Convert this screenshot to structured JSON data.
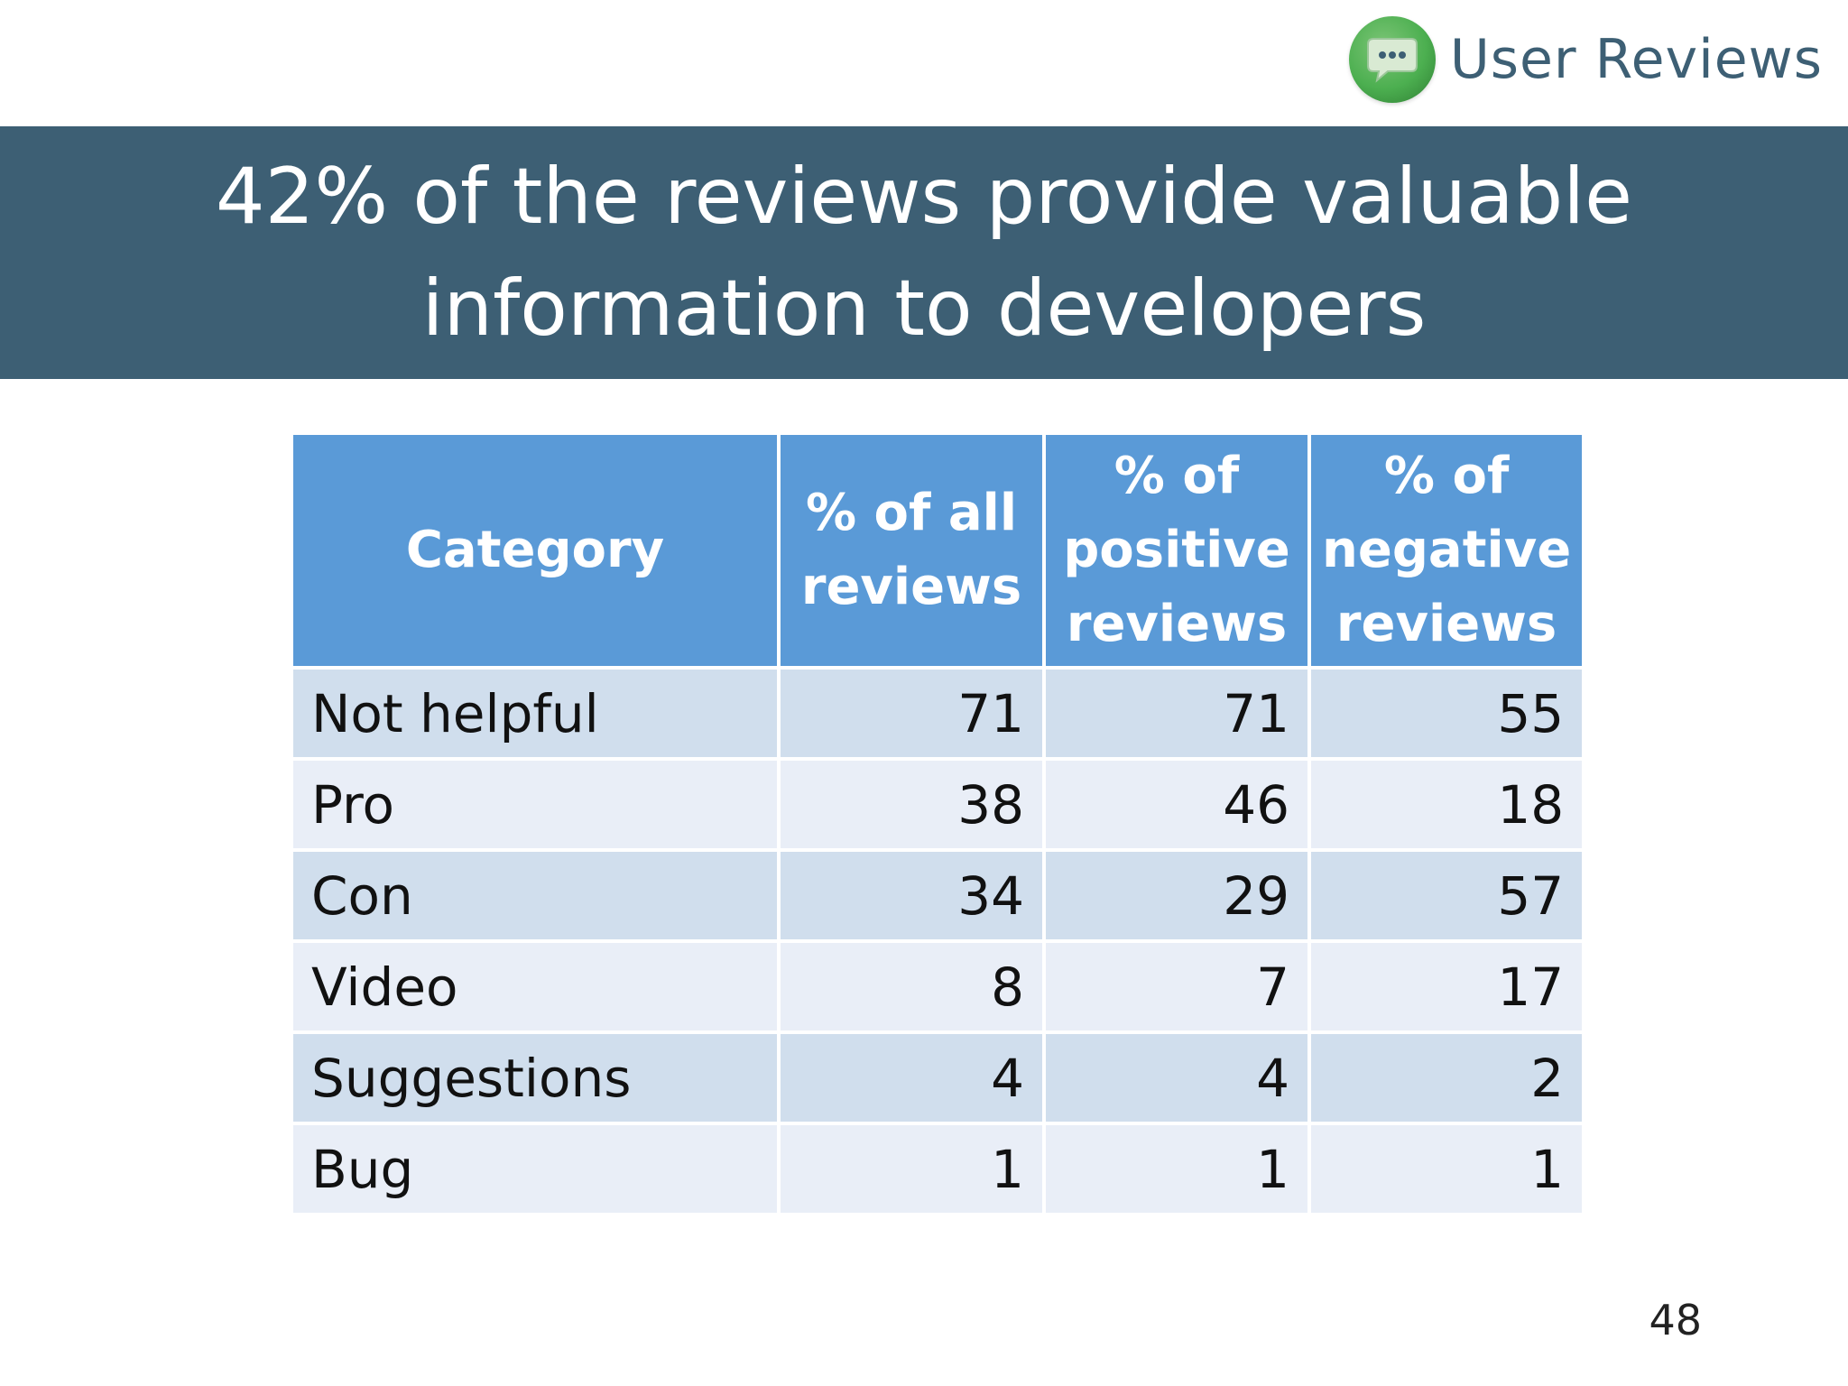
{
  "brand": {
    "icon": "chat-bubble-icon",
    "title": "User Reviews",
    "colors": {
      "icon_green": "#4caf50",
      "title": "#3d5f74"
    }
  },
  "banner": {
    "title": "42% of the reviews provide valuable information to developers",
    "background": "#3d5f74"
  },
  "table": {
    "headers": [
      "Category",
      "% of all reviews",
      "% of positive reviews",
      "% of negative reviews"
    ],
    "rows": [
      {
        "category": "Not helpful",
        "all": "71",
        "positive": "71",
        "negative": "55"
      },
      {
        "category": "Pro",
        "all": "38",
        "positive": "46",
        "negative": "18"
      },
      {
        "category": "Con",
        "all": "34",
        "positive": "29",
        "negative": "57"
      },
      {
        "category": "Video",
        "all": "8",
        "positive": "7",
        "negative": "17"
      },
      {
        "category": "Suggestions",
        "all": "4",
        "positive": "4",
        "negative": "2"
      },
      {
        "category": "Bug",
        "all": "1",
        "positive": "1",
        "negative": "1"
      }
    ],
    "colors": {
      "header": "#5a9ad7",
      "row_dark": "#d0deed",
      "row_light": "#e9eef7"
    }
  },
  "page_number": "48"
}
